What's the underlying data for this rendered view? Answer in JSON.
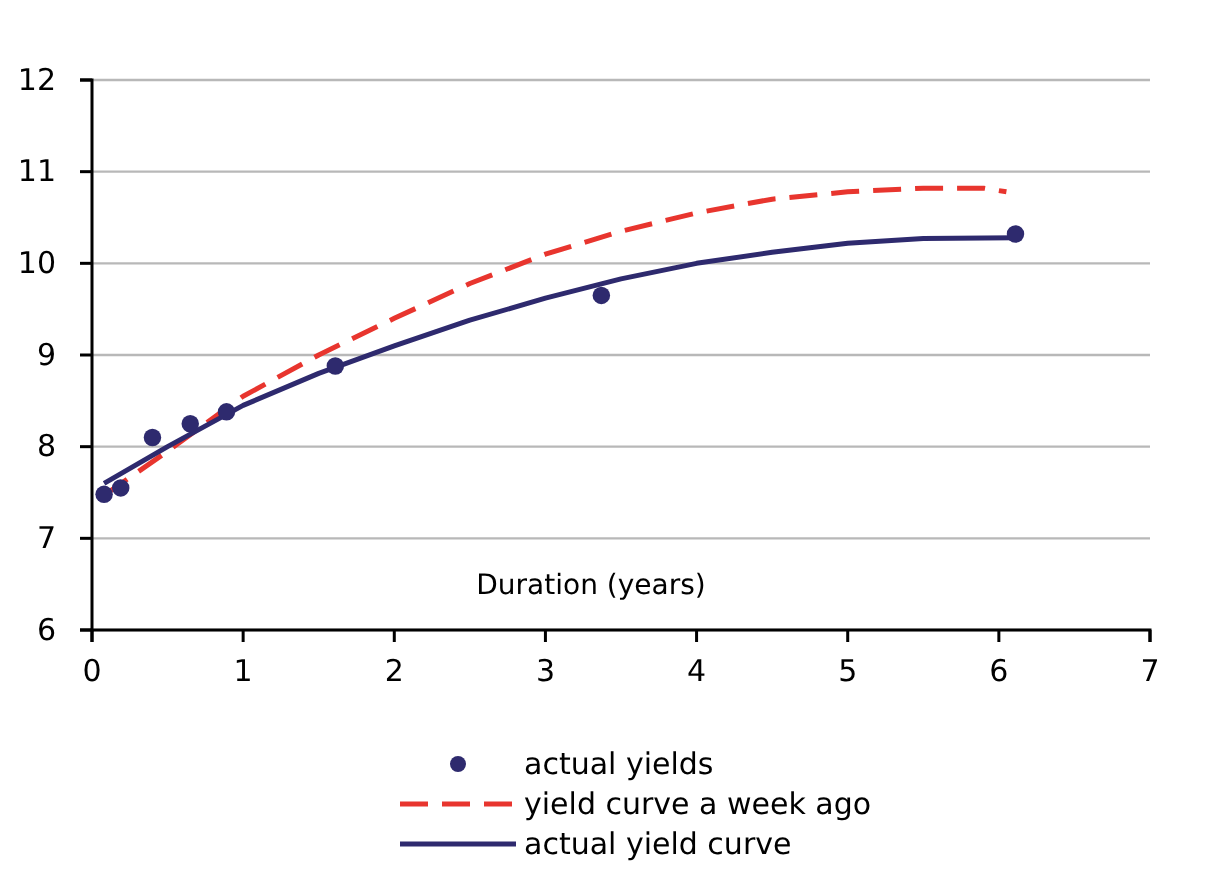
{
  "chart_data": {
    "type": "line",
    "xlabel": "Duration (years)",
    "xlim": [
      0,
      7
    ],
    "xticks": [
      0,
      1,
      2,
      3,
      4,
      5,
      6,
      7
    ],
    "ylim": [
      6,
      12
    ],
    "yticks": [
      6,
      7,
      8,
      9,
      10,
      11,
      12
    ],
    "grid": "y",
    "legend": "bottom",
    "series": [
      {
        "name": "actual yields",
        "type": "scatter",
        "marker": "circle",
        "color": "#2e2a6e",
        "x": [
          0.08,
          0.19,
          0.4,
          0.65,
          0.89,
          1.61,
          3.37,
          6.11
        ],
        "values": [
          7.48,
          7.55,
          8.1,
          8.25,
          8.38,
          8.88,
          9.65,
          10.32
        ]
      },
      {
        "name": "yield curve a week ago",
        "line_style": "dashed",
        "color": "#e8352e",
        "x": [
          0.08,
          0.5,
          1,
          1.5,
          2,
          2.5,
          3,
          3.5,
          4,
          4.5,
          5,
          5.5,
          5.9,
          6.05
        ],
        "values": [
          7.47,
          7.95,
          8.55,
          9.0,
          9.4,
          9.78,
          10.1,
          10.35,
          10.55,
          10.7,
          10.78,
          10.82,
          10.82,
          10.78
        ]
      },
      {
        "name": "actual yield curve",
        "line_style": "solid",
        "color": "#2e2a6e",
        "x": [
          0.08,
          0.5,
          1,
          1.5,
          2,
          2.5,
          3,
          3.5,
          4,
          4.5,
          5,
          5.5,
          6.11
        ],
        "values": [
          7.6,
          8.0,
          8.45,
          8.8,
          9.1,
          9.38,
          9.62,
          9.83,
          10.0,
          10.12,
          10.22,
          10.27,
          10.28
        ]
      }
    ]
  }
}
